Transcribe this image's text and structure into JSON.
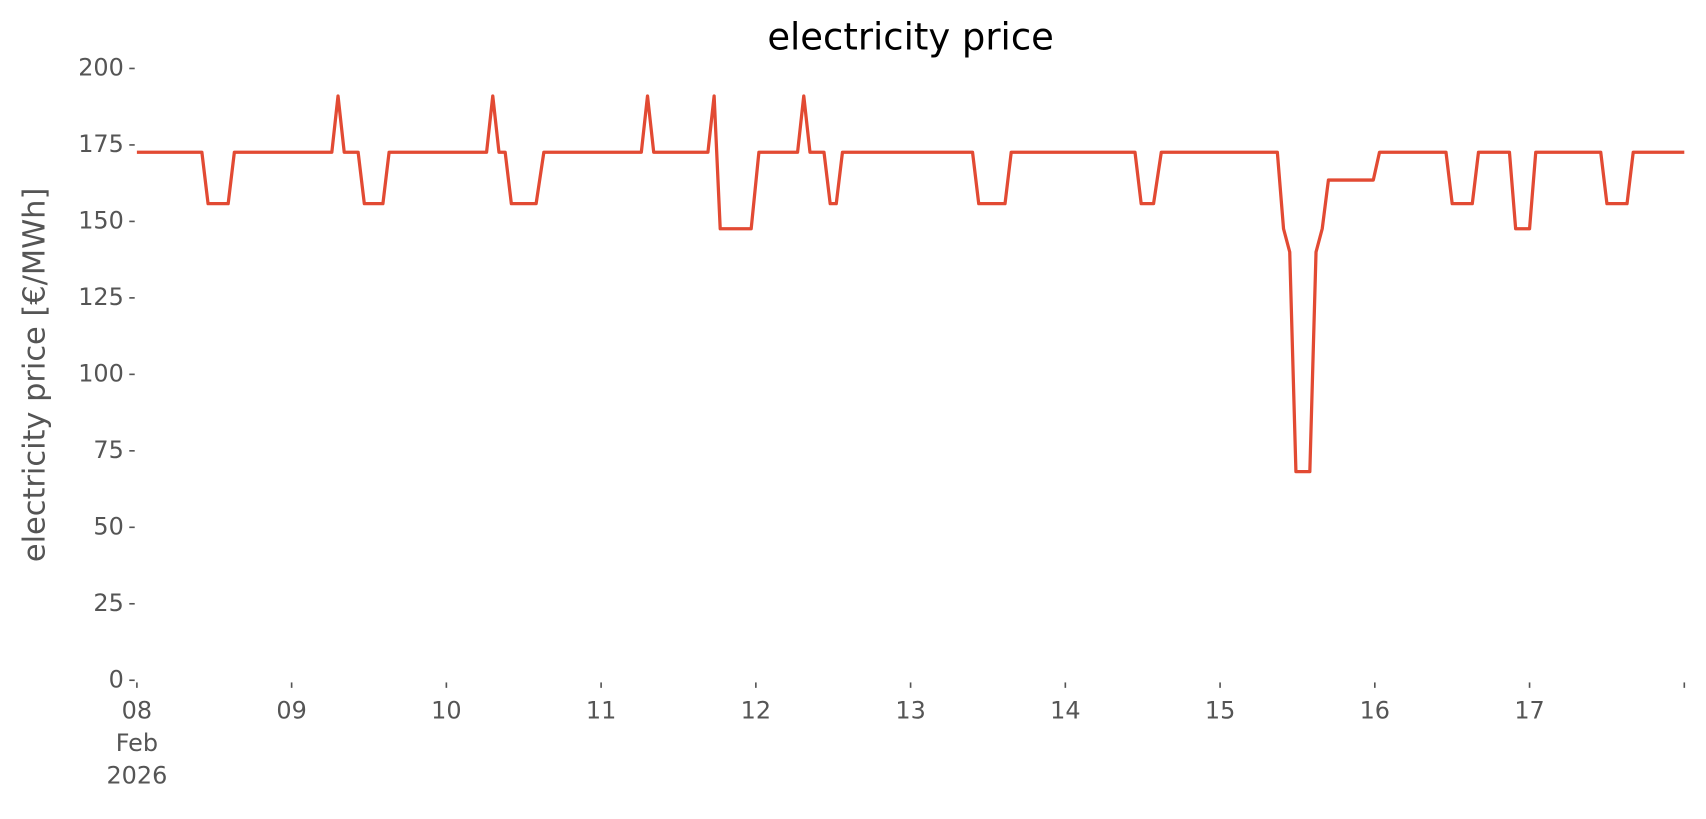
{
  "chart_data": {
    "type": "line",
    "title": "electricity price",
    "y_label": "electricity price [€/MWh]",
    "x": [
      8.0,
      8.42,
      8.46,
      8.59,
      8.63,
      9.26,
      9.3,
      9.34,
      9.43,
      9.47,
      9.59,
      9.63,
      10.26,
      10.3,
      10.34,
      10.38,
      10.42,
      10.58,
      10.63,
      11.26,
      11.3,
      11.34,
      11.69,
      11.73,
      11.77,
      11.97,
      12.02,
      12.27,
      12.31,
      12.35,
      12.44,
      12.48,
      12.52,
      12.56,
      13.4,
      13.44,
      13.61,
      13.65,
      14.45,
      14.49,
      14.57,
      14.62,
      15.37,
      15.41,
      15.45,
      15.49,
      15.58,
      15.62,
      15.66,
      15.7,
      15.99,
      16.03,
      16.46,
      16.5,
      16.63,
      16.67,
      16.87,
      16.91,
      17.0,
      17.04,
      17.46,
      17.5,
      17.63,
      17.67,
      18.0
    ],
    "series": [
      {
        "name": "electricity price",
        "color": "#e24a33",
        "values": [
          172.6,
          172.6,
          155.8,
          155.8,
          172.6,
          172.6,
          191,
          172.6,
          172.6,
          155.8,
          155.8,
          172.6,
          172.6,
          191,
          172.6,
          172.6,
          155.8,
          155.8,
          172.6,
          172.6,
          191,
          172.6,
          172.6,
          191,
          147.6,
          147.6,
          172.6,
          172.6,
          191,
          172.6,
          172.6,
          155.8,
          155.8,
          172.6,
          172.6,
          155.8,
          155.8,
          172.6,
          172.6,
          155.8,
          155.8,
          172.6,
          172.6,
          147.6,
          140,
          68.2,
          68.2,
          140,
          147.6,
          163.5,
          163.5,
          172.6,
          172.6,
          155.8,
          155.8,
          172.6,
          172.6,
          147.6,
          147.6,
          172.6,
          172.6,
          155.8,
          155.8,
          172.6,
          172.6
        ]
      }
    ],
    "xlim": [
      8,
      18
    ],
    "xticks": [
      {
        "value": 8,
        "label": "08 Feb 2026"
      },
      {
        "value": 9,
        "label": "09"
      },
      {
        "value": 10,
        "label": "10"
      },
      {
        "value": 11,
        "label": "11"
      },
      {
        "value": 12,
        "label": "12"
      },
      {
        "value": 13,
        "label": "13"
      },
      {
        "value": 14,
        "label": "14"
      },
      {
        "value": 15,
        "label": "15"
      },
      {
        "value": 16,
        "label": "16"
      },
      {
        "value": 17,
        "label": "17"
      }
    ],
    "ylim": [
      0,
      200
    ],
    "yticks": [
      0,
      25,
      50,
      75,
      100,
      125,
      150,
      175,
      200
    ]
  }
}
